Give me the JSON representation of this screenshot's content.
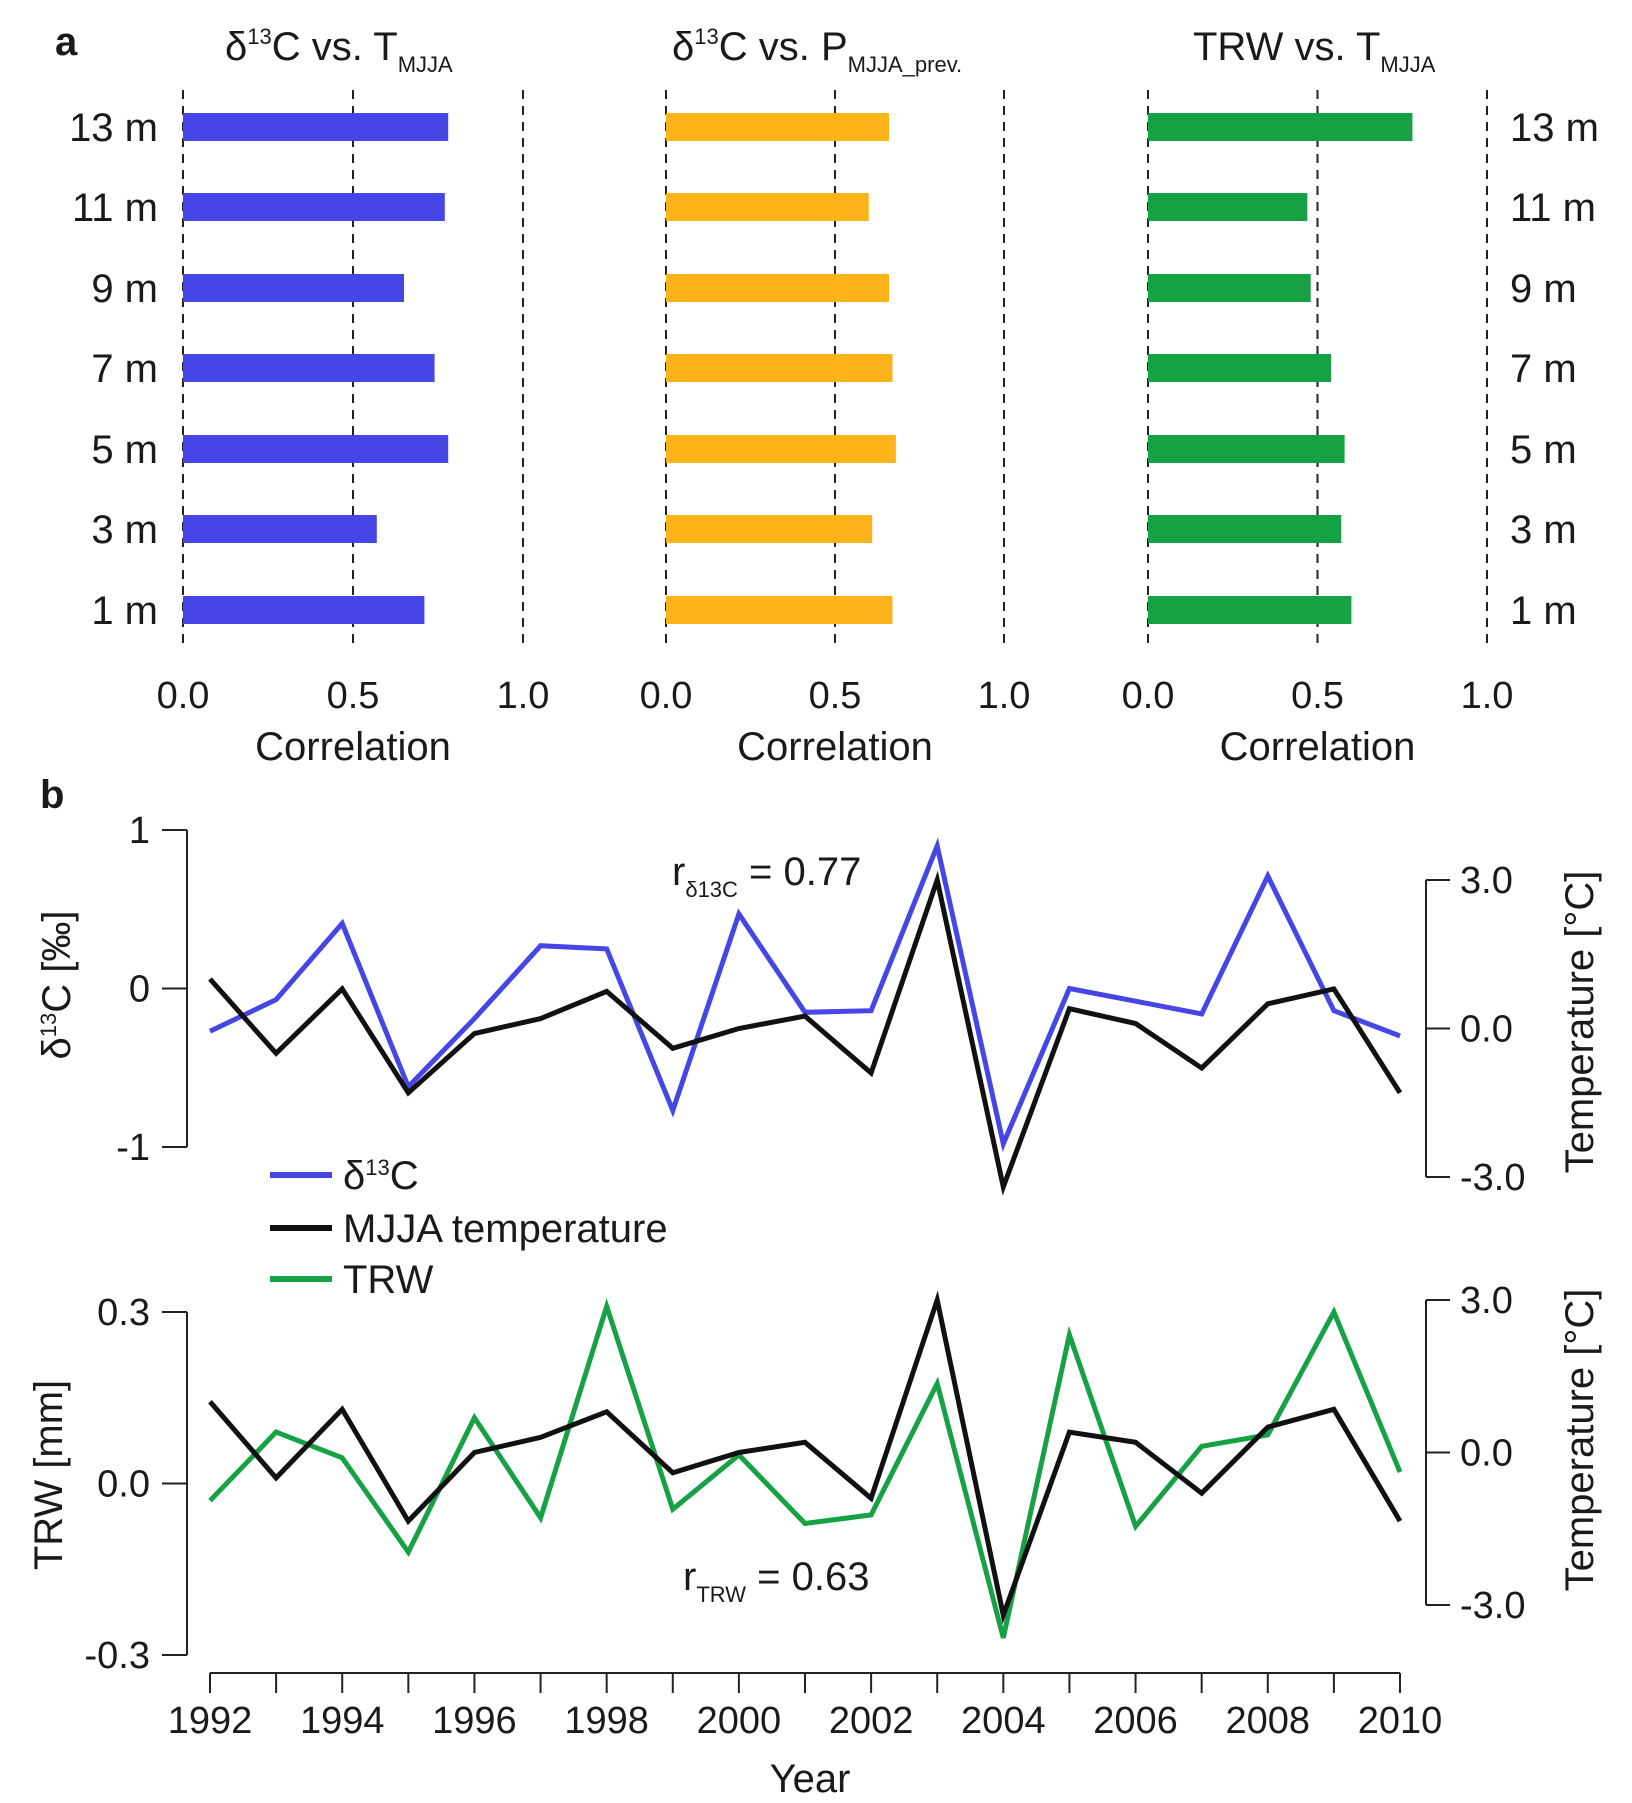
{
  "panels": {
    "a": "a",
    "b": "b"
  },
  "colors": {
    "d13c": "#4646e6",
    "precip": "#ffb31a",
    "trw": "#17a145",
    "temp": "#111111"
  },
  "chart_data": [
    {
      "type": "bar",
      "orientation": "horizontal",
      "title": {
        "main": "δ",
        "sup": "13",
        "rest": "C vs. T",
        "sub": "MJJA"
      },
      "categories": [
        "13 m",
        "11 m",
        "9 m",
        "7 m",
        "5 m",
        "3 m",
        "1 m"
      ],
      "values": [
        0.78,
        0.77,
        0.65,
        0.74,
        0.78,
        0.57,
        0.71
      ],
      "xlim": [
        0,
        1.0
      ],
      "xticks": [
        "0.0",
        "0.5",
        "1.0"
      ],
      "xlabel": "Correlation",
      "color": "#4646e6"
    },
    {
      "type": "bar",
      "orientation": "horizontal",
      "title": {
        "main": "δ",
        "sup": "13",
        "rest": "C vs. P",
        "sub": "MJJA_prev."
      },
      "categories": [
        "13 m",
        "11 m",
        "9 m",
        "7 m",
        "5 m",
        "3 m",
        "1 m"
      ],
      "values": [
        0.66,
        0.6,
        0.66,
        0.67,
        0.68,
        0.61,
        0.67
      ],
      "xlim": [
        0,
        1.0
      ],
      "xticks": [
        "0.0",
        "0.5",
        "1.0"
      ],
      "xlabel": "Correlation",
      "color": "#ffb31a"
    },
    {
      "type": "bar",
      "orientation": "horizontal",
      "title": {
        "main": "TRW vs. T",
        "sub": "MJJA"
      },
      "categories": [
        "13 m",
        "11 m",
        "9 m",
        "7 m",
        "5 m",
        "3 m",
        "1 m"
      ],
      "values": [
        0.78,
        0.47,
        0.48,
        0.54,
        0.58,
        0.57,
        0.6
      ],
      "xlim": [
        0,
        1.0
      ],
      "xticks": [
        "0.0",
        "0.5",
        "1.0"
      ],
      "xlabel": "Correlation",
      "color": "#17a145"
    },
    {
      "type": "line",
      "x": [
        1992,
        1993,
        1994,
        1995,
        1996,
        1997,
        1998,
        1999,
        2000,
        2001,
        2002,
        2003,
        2004,
        2005,
        2006,
        2007,
        2008,
        2009,
        2010
      ],
      "series": [
        {
          "name": "δ13C",
          "axis": "left",
          "color": "#4646e6",
          "values": [
            -0.27,
            -0.07,
            0.41,
            -0.62,
            -0.19,
            0.27,
            0.25,
            -0.77,
            0.47,
            -0.15,
            -0.14,
            0.9,
            -0.98,
            0.0,
            -0.08,
            -0.16,
            0.71,
            -0.14,
            -0.3
          ]
        },
        {
          "name": "MJJA temperature",
          "axis": "right",
          "color": "#111111",
          "values": [
            1.0,
            -0.5,
            0.8,
            -1.3,
            -0.1,
            0.2,
            0.75,
            -0.4,
            0.0,
            0.25,
            -0.9,
            3.0,
            -3.2,
            0.4,
            0.1,
            -0.8,
            0.5,
            0.8,
            -1.3
          ]
        }
      ],
      "ylabel_left": "δ13C [‰]",
      "ylim_left": [
        -1,
        1
      ],
      "yticks_left": [
        "-1",
        "0",
        "1"
      ],
      "ylabel_right": "Temperature [°C]",
      "ylim_right": [
        -3,
        3
      ],
      "yticks_right": [
        "-3.0",
        "0.0",
        "3.0"
      ],
      "annotation": {
        "r": "r",
        "sub": "δ13C",
        "rest": " = 0.77"
      },
      "legend": [
        "δ13C",
        "MJJA temperature",
        "TRW"
      ]
    },
    {
      "type": "line",
      "x": [
        1992,
        1993,
        1994,
        1995,
        1996,
        1997,
        1998,
        1999,
        2000,
        2001,
        2002,
        2003,
        2004,
        2005,
        2006,
        2007,
        2008,
        2009,
        2010
      ],
      "series": [
        {
          "name": "TRW",
          "axis": "left",
          "color": "#17a145",
          "values": [
            -0.03,
            0.09,
            0.045,
            -0.12,
            0.115,
            -0.06,
            0.31,
            -0.045,
            0.05,
            -0.07,
            -0.055,
            0.175,
            -0.27,
            0.26,
            -0.075,
            0.065,
            0.085,
            0.3,
            0.02
          ]
        },
        {
          "name": "MJJA temperature",
          "axis": "right",
          "color": "#111111",
          "values": [
            1.0,
            -0.5,
            0.85,
            -1.35,
            0.0,
            0.3,
            0.8,
            -0.4,
            0.0,
            0.2,
            -0.9,
            3.0,
            -3.2,
            0.4,
            0.2,
            -0.8,
            0.5,
            0.85,
            -1.35
          ]
        }
      ],
      "ylabel_left": "TRW [mm]",
      "ylim_left": [
        -0.3,
        0.3
      ],
      "yticks_left": [
        "-0.3",
        "0.0",
        "0.3"
      ],
      "ylabel_right": "Temperature [°C]",
      "ylim_right": [
        -3,
        3
      ],
      "yticks_right": [
        "-3.0",
        "0.0",
        "3.0"
      ],
      "annotation": {
        "r": "r",
        "sub": "TRW",
        "rest": " = 0.63"
      },
      "xticks": [
        "1992",
        "1994",
        "1996",
        "1998",
        "2000",
        "2002",
        "2004",
        "2006",
        "2008",
        "2010"
      ],
      "xlabel": "Year"
    }
  ]
}
